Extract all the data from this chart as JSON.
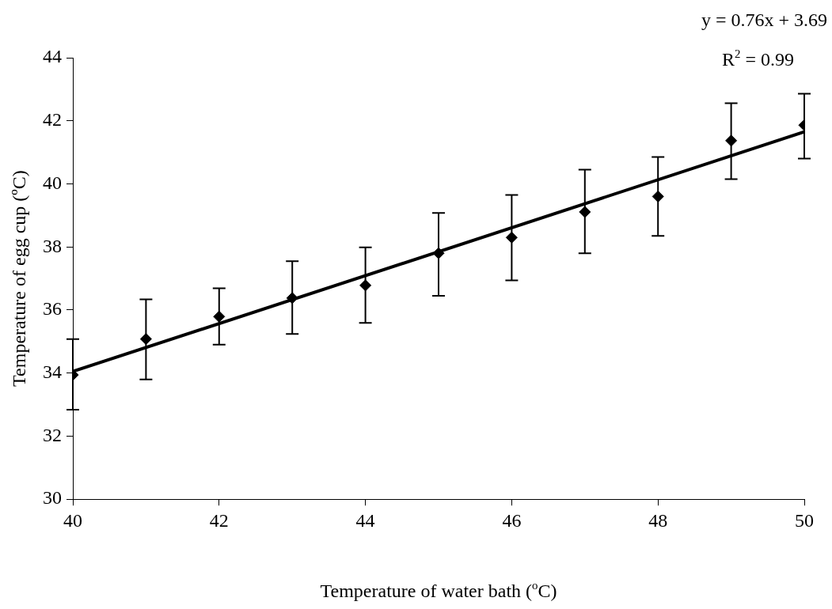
{
  "chart_data": {
    "type": "scatter",
    "xlabel": "Temperature of water bath ($^{o}$C)",
    "ylabel": "Temperature of egg cup (ºC)",
    "annotations": [
      "y = 0.76x + 3.69",
      "R$^{2}$ = 0.99"
    ],
    "xlim": [
      40,
      50
    ],
    "xticks": [
      40,
      42,
      44,
      46,
      48,
      50
    ],
    "ylim": [
      30,
      44
    ],
    "yticks": [
      30,
      32,
      34,
      36,
      38,
      40,
      42,
      44
    ],
    "grid": false,
    "legend": false,
    "series": [
      {
        "marker": "diamond",
        "color": "#000000",
        "x": [
          40,
          41,
          42,
          43,
          44,
          45,
          46,
          47,
          48,
          49,
          50
        ],
        "values": [
          33.94,
          35.08,
          35.79,
          36.38,
          36.78,
          37.8,
          38.3,
          39.11,
          39.6,
          41.37,
          41.86
        ],
        "errors": [
          [
            32.84,
            35.08
          ],
          [
            33.8,
            36.34
          ],
          [
            34.9,
            36.69
          ],
          [
            35.24,
            37.55
          ],
          [
            35.59,
            37.99
          ],
          [
            36.45,
            39.08
          ],
          [
            36.94,
            39.65
          ],
          [
            37.8,
            40.45
          ],
          [
            38.35,
            40.85
          ],
          [
            40.15,
            42.56
          ],
          [
            40.8,
            42.86
          ]
        ]
      },
      {
        "type": "line",
        "marker": "none",
        "color": "#000000",
        "x": [
          40,
          50
        ],
        "values": [
          34.05,
          41.65
        ]
      }
    ]
  }
}
